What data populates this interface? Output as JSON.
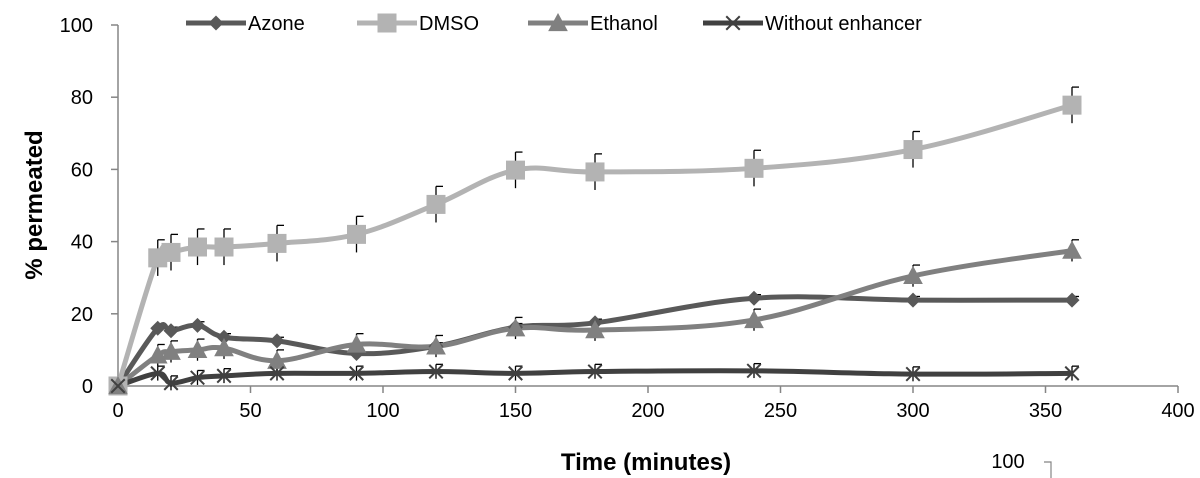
{
  "chart_data": {
    "type": "line",
    "xlabel": "Time (minutes)",
    "ylabel": "% permeated",
    "xlim": [
      0,
      400
    ],
    "ylim": [
      0,
      100
    ],
    "xticks": [
      "0",
      "50",
      "100",
      "150",
      "200",
      "250",
      "300",
      "350",
      "400"
    ],
    "yticks": [
      "0",
      "20",
      "40",
      "60",
      "80",
      "100"
    ],
    "grid": false,
    "legend": "top",
    "stray_label": "100",
    "series": [
      {
        "name": "Azone",
        "color": "#595959",
        "marker": "diamond",
        "x": [
          0,
          15,
          20,
          30,
          40,
          60,
          90,
          120,
          150,
          180,
          240,
          300,
          360
        ],
        "y": [
          0,
          16,
          15.3,
          16.8,
          13.5,
          12.5,
          9,
          11,
          16.3,
          17.5,
          24.3,
          23.8,
          23.8
        ],
        "err": [
          0,
          1,
          1,
          1,
          1,
          1,
          1,
          1,
          1,
          1,
          1,
          1,
          1
        ]
      },
      {
        "name": "DMSO",
        "color": "#b3b3b3",
        "marker": "square",
        "x": [
          0,
          15,
          20,
          30,
          40,
          60,
          90,
          120,
          150,
          180,
          240,
          300,
          360
        ],
        "y": [
          0,
          35.5,
          37,
          38.5,
          38.5,
          39.5,
          42,
          50.3,
          59.8,
          59.3,
          60.3,
          65.5,
          77.8
        ],
        "err": [
          0,
          5,
          5,
          5,
          5,
          5,
          5,
          5,
          5,
          5,
          5,
          5,
          5
        ]
      },
      {
        "name": "Ethanol",
        "color": "#808080",
        "marker": "triangle",
        "x": [
          0,
          15,
          20,
          30,
          40,
          60,
          90,
          120,
          150,
          180,
          240,
          300,
          360
        ],
        "y": [
          0,
          8.5,
          9.5,
          10,
          10.5,
          7,
          11.5,
          11,
          16,
          15.5,
          18.3,
          30.5,
          37.5
        ],
        "err": [
          0,
          3,
          3,
          3,
          3,
          3,
          3,
          3,
          3,
          3,
          3,
          3,
          3
        ]
      },
      {
        "name": "Without enhancer",
        "color": "#404040",
        "marker": "x",
        "x": [
          0,
          15,
          20,
          30,
          40,
          60,
          90,
          120,
          150,
          180,
          240,
          300,
          360
        ],
        "y": [
          0,
          3.5,
          0.8,
          2.3,
          2.8,
          3.5,
          3.5,
          4,
          3.5,
          4,
          4.2,
          3.3,
          3.5
        ],
        "err": [
          0,
          2,
          2,
          2,
          2,
          2,
          2,
          2,
          2,
          2,
          2,
          2,
          2
        ]
      }
    ]
  }
}
